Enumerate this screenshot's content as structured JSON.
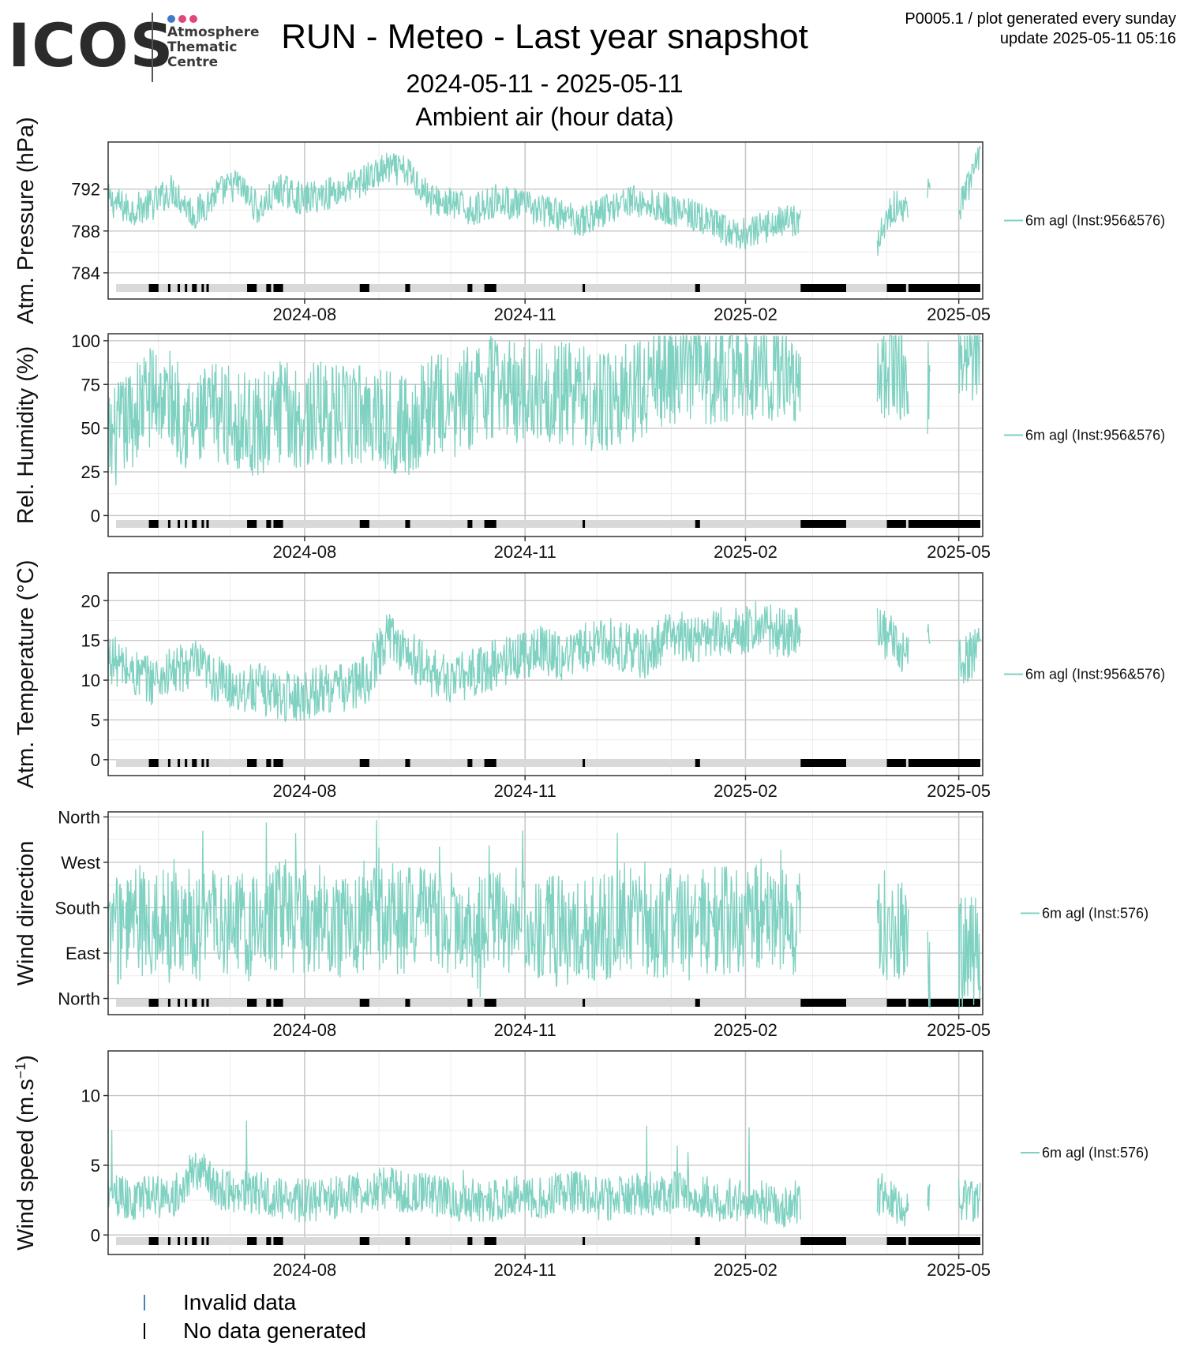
{
  "header": {
    "logo_text": "ICOS",
    "logo_sub": [
      "Atmosphere",
      "Thematic",
      "Centre"
    ],
    "logo_dot_colors": [
      "#3e7ac6",
      "#e0457b",
      "#e0457b"
    ],
    "title": "RUN - Meteo - Last year snapshot",
    "date_range": "2024-05-11 - 2025-05-11",
    "subtitle": "Ambient air (hour data)",
    "meta_line1": "P0005.1 / plot generated every sunday",
    "meta_line2": "update  2025-05-11 05:16"
  },
  "colors": {
    "series": "#7fd1c1",
    "invalid": "#4a7fc0",
    "no_data": "#000000",
    "strip": "#d9d9d9",
    "grid_major": "#c8c8c8",
    "grid_minor": "#ececec"
  },
  "legend_bottom": [
    {
      "label": "Invalid data",
      "color": "#4a7fc0"
    },
    {
      "label": "No data generated",
      "color": "#000000"
    }
  ],
  "chart_data": [
    {
      "type": "line",
      "ylabel": "Atm. Pressure (hPa)",
      "series_name": "6m agl (Inst:956&576)",
      "xrange": [
        "2024-05-11",
        "2025-05-11"
      ],
      "xticks": [
        "2024-08",
        "2024-11",
        "2025-02",
        "2025-05"
      ],
      "ylim": [
        781.5,
        796.5
      ],
      "yticks": [
        784,
        788,
        792
      ],
      "ytick_labels": [
        "784",
        "788",
        "792"
      ],
      "grid": true,
      "series": [
        {
          "points": [
            [
              "2024-05-11",
              791.0
            ],
            [
              "2024-05-20",
              790.0
            ],
            [
              "2024-05-29",
              790.5
            ],
            [
              "2024-06-07",
              792.0
            ],
            [
              "2024-06-16",
              789.5
            ],
            [
              "2024-06-25",
              791.5
            ],
            [
              "2024-07-04",
              792.5
            ],
            [
              "2024-07-13",
              790.0
            ],
            [
              "2024-07-22",
              792.0
            ],
            [
              "2024-07-31",
              791.0
            ],
            [
              "2024-08-09",
              791.5
            ],
            [
              "2024-08-18",
              792.0
            ],
            [
              "2024-08-27",
              793.0
            ],
            [
              "2024-09-05",
              794.0
            ],
            [
              "2024-09-14",
              793.5
            ],
            [
              "2024-09-23",
              791.0
            ],
            [
              "2024-10-02",
              790.5
            ],
            [
              "2024-10-11",
              790.0
            ],
            [
              "2024-10-20",
              791.0
            ],
            [
              "2024-10-29",
              790.5
            ],
            [
              "2024-11-07",
              790.0
            ],
            [
              "2024-11-16",
              789.5
            ],
            [
              "2024-11-25",
              789.0
            ],
            [
              "2024-12-04",
              790.0
            ],
            [
              "2024-12-13",
              791.0
            ],
            [
              "2024-12-22",
              790.5
            ],
            [
              "2025-01-01",
              790.0
            ],
            [
              "2025-01-10",
              789.5
            ],
            [
              "2025-01-19",
              788.5
            ],
            [
              "2025-01-28",
              787.5
            ],
            [
              "2025-02-06",
              788.0
            ],
            [
              "2025-02-15",
              789.0
            ],
            [
              "2025-02-24",
              789.0
            ],
            [
              "2025-03-28",
              787.0
            ],
            [
              "2025-04-04",
              790.5
            ],
            [
              "2025-04-10",
              790.0
            ],
            [
              "2025-04-18",
              792.0
            ],
            [
              "2025-05-01",
              790.0
            ],
            [
              "2025-05-10",
              795.0
            ]
          ]
        }
      ]
    },
    {
      "type": "line",
      "ylabel": "Rel. Humidity (%)",
      "series_name": "6m agl (Inst:956&576)",
      "xrange": [
        "2024-05-11",
        "2025-05-11"
      ],
      "xticks": [
        "2024-08",
        "2024-11",
        "2025-02",
        "2025-05"
      ],
      "ylim": [
        -12,
        104
      ],
      "yticks": [
        0,
        25,
        50,
        75,
        100
      ],
      "ytick_labels": [
        "0",
        "25",
        "50",
        "75",
        "100"
      ],
      "grid": true,
      "series": [
        {
          "points": [
            [
              "2024-05-11",
              40
            ],
            [
              "2024-05-20",
              55
            ],
            [
              "2024-05-29",
              70
            ],
            [
              "2024-06-07",
              65
            ],
            [
              "2024-06-16",
              50
            ],
            [
              "2024-06-25",
              60
            ],
            [
              "2024-07-04",
              55
            ],
            [
              "2024-07-13",
              50
            ],
            [
              "2024-07-22",
              60
            ],
            [
              "2024-07-31",
              55
            ],
            [
              "2024-08-09",
              60
            ],
            [
              "2024-08-18",
              55
            ],
            [
              "2024-08-27",
              60
            ],
            [
              "2024-09-05",
              55
            ],
            [
              "2024-09-14",
              50
            ],
            [
              "2024-09-23",
              65
            ],
            [
              "2024-10-02",
              60
            ],
            [
              "2024-10-11",
              70
            ],
            [
              "2024-10-20",
              75
            ],
            [
              "2024-10-29",
              70
            ],
            [
              "2024-11-07",
              72
            ],
            [
              "2024-11-16",
              70
            ],
            [
              "2024-11-25",
              68
            ],
            [
              "2024-12-04",
              65
            ],
            [
              "2024-12-13",
              70
            ],
            [
              "2024-12-22",
              75
            ],
            [
              "2025-01-01",
              82
            ],
            [
              "2025-01-10",
              85
            ],
            [
              "2025-01-19",
              80
            ],
            [
              "2025-01-28",
              85
            ],
            [
              "2025-02-06",
              84
            ],
            [
              "2025-02-15",
              83
            ],
            [
              "2025-02-24",
              82
            ],
            [
              "2025-03-28",
              80
            ],
            [
              "2025-04-04",
              85
            ],
            [
              "2025-04-10",
              82
            ],
            [
              "2025-04-18",
              75
            ],
            [
              "2025-05-01",
              88
            ],
            [
              "2025-05-10",
              90
            ]
          ]
        }
      ]
    },
    {
      "type": "line",
      "ylabel": "Atm. Temperature (°C)",
      "series_name": "6m agl (Inst:956&576)",
      "xrange": [
        "2024-05-11",
        "2025-05-11"
      ],
      "xticks": [
        "2024-08",
        "2024-11",
        "2025-02",
        "2025-05"
      ],
      "ylim": [
        -2,
        23.5
      ],
      "yticks": [
        0,
        5,
        10,
        15,
        20
      ],
      "ytick_labels": [
        "0",
        "5",
        "10",
        "15",
        "20"
      ],
      "grid": true,
      "series": [
        {
          "points": [
            [
              "2024-05-11",
              13
            ],
            [
              "2024-05-20",
              11
            ],
            [
              "2024-05-29",
              10
            ],
            [
              "2024-06-07",
              11
            ],
            [
              "2024-06-16",
              12
            ],
            [
              "2024-06-25",
              10
            ],
            [
              "2024-07-04",
              9
            ],
            [
              "2024-07-13",
              9
            ],
            [
              "2024-07-22",
              8
            ],
            [
              "2024-07-31",
              8
            ],
            [
              "2024-08-09",
              9
            ],
            [
              "2024-08-18",
              9
            ],
            [
              "2024-08-27",
              10
            ],
            [
              "2024-09-05",
              16
            ],
            [
              "2024-09-14",
              13
            ],
            [
              "2024-09-23",
              11
            ],
            [
              "2024-10-02",
              10
            ],
            [
              "2024-10-11",
              11
            ],
            [
              "2024-10-20",
              12
            ],
            [
              "2024-10-29",
              13
            ],
            [
              "2024-11-07",
              14
            ],
            [
              "2024-11-16",
              13
            ],
            [
              "2024-11-25",
              14
            ],
            [
              "2024-12-04",
              15
            ],
            [
              "2024-12-13",
              14
            ],
            [
              "2024-12-22",
              13
            ],
            [
              "2025-01-01",
              16
            ],
            [
              "2025-01-10",
              15
            ],
            [
              "2025-01-19",
              16
            ],
            [
              "2025-01-28",
              16
            ],
            [
              "2025-02-06",
              17
            ],
            [
              "2025-02-15",
              16
            ],
            [
              "2025-02-24",
              16
            ],
            [
              "2025-03-28",
              16
            ],
            [
              "2025-04-04",
              15
            ],
            [
              "2025-04-10",
              13
            ],
            [
              "2025-04-18",
              14
            ],
            [
              "2025-05-01",
              12
            ],
            [
              "2025-05-10",
              14
            ]
          ]
        }
      ]
    },
    {
      "type": "line",
      "ylabel": "Wind direction",
      "series_name": "6m agl (Inst:576)",
      "xrange": [
        "2024-05-11",
        "2025-05-11"
      ],
      "xticks": [
        "2024-08",
        "2024-11",
        "2025-02",
        "2025-05"
      ],
      "ylim": [
        -32,
        370
      ],
      "yticks": [
        0,
        90,
        180,
        270,
        360
      ],
      "ytick_labels": [
        "North",
        "East",
        "South",
        "West",
        "North"
      ],
      "grid": true,
      "series": [
        {
          "points": [
            [
              "2024-05-11",
              120
            ],
            [
              "2024-05-20",
              160
            ],
            [
              "2024-05-29",
              150
            ],
            [
              "2024-06-07",
              170
            ],
            [
              "2024-06-16",
              140
            ],
            [
              "2024-06-25",
              160
            ],
            [
              "2024-07-04",
              150
            ],
            [
              "2024-07-13",
              130
            ],
            [
              "2024-07-22",
              170
            ],
            [
              "2024-07-31",
              150
            ],
            [
              "2024-08-09",
              160
            ],
            [
              "2024-08-18",
              140
            ],
            [
              "2024-08-27",
              170
            ],
            [
              "2024-09-05",
              150
            ],
            [
              "2024-09-14",
              160
            ],
            [
              "2024-09-23",
              140
            ],
            [
              "2024-10-02",
              150
            ],
            [
              "2024-10-11",
              130
            ],
            [
              "2024-10-20",
              160
            ],
            [
              "2024-10-29",
              150
            ],
            [
              "2024-11-07",
              140
            ],
            [
              "2024-11-16",
              130
            ],
            [
              "2024-11-25",
              150
            ],
            [
              "2024-12-04",
              140
            ],
            [
              "2024-12-13",
              160
            ],
            [
              "2024-12-22",
              130
            ],
            [
              "2025-01-01",
              150
            ],
            [
              "2025-01-10",
              140
            ],
            [
              "2025-01-19",
              160
            ],
            [
              "2025-01-28",
              150
            ],
            [
              "2025-02-06",
              170
            ],
            [
              "2025-02-15",
              160
            ],
            [
              "2025-02-24",
              150
            ],
            [
              "2025-03-28",
              140
            ],
            [
              "2025-04-04",
              150
            ],
            [
              "2025-04-10",
              120
            ],
            [
              "2025-04-18",
              80
            ],
            [
              "2025-05-01",
              90
            ],
            [
              "2025-05-10",
              100
            ]
          ]
        }
      ]
    },
    {
      "type": "line",
      "ylabel": "Wind speed (m.s",
      "ylabel_sup": "−1",
      "ylabel_close": ")",
      "series_name": "6m agl (Inst:576)",
      "xrange": [
        "2024-05-11",
        "2025-05-11"
      ],
      "xticks": [
        "2024-08",
        "2024-11",
        "2025-02",
        "2025-05"
      ],
      "ylim": [
        -1.4,
        13.2
      ],
      "yticks": [
        0,
        5,
        10
      ],
      "ytick_labels": [
        "0",
        "5",
        "10"
      ],
      "grid": true,
      "series": [
        {
          "points": [
            [
              "2024-05-11",
              3.0
            ],
            [
              "2024-05-20",
              2.5
            ],
            [
              "2024-05-29",
              3.0
            ],
            [
              "2024-06-07",
              2.5
            ],
            [
              "2024-06-16",
              5.0
            ],
            [
              "2024-06-25",
              3.5
            ],
            [
              "2024-07-04",
              3.0
            ],
            [
              "2024-07-13",
              3.0
            ],
            [
              "2024-07-22",
              2.5
            ],
            [
              "2024-07-31",
              2.5
            ],
            [
              "2024-08-09",
              2.5
            ],
            [
              "2024-08-18",
              3.0
            ],
            [
              "2024-08-27",
              3.0
            ],
            [
              "2024-09-05",
              3.5
            ],
            [
              "2024-09-14",
              3.0
            ],
            [
              "2024-09-23",
              3.0
            ],
            [
              "2024-10-02",
              2.5
            ],
            [
              "2024-10-11",
              2.5
            ],
            [
              "2024-10-20",
              2.5
            ],
            [
              "2024-10-29",
              3.0
            ],
            [
              "2024-11-07",
              2.5
            ],
            [
              "2024-11-16",
              3.0
            ],
            [
              "2024-11-25",
              3.0
            ],
            [
              "2024-12-04",
              2.5
            ],
            [
              "2024-12-13",
              3.0
            ],
            [
              "2024-12-22",
              3.0
            ],
            [
              "2025-01-01",
              3.0
            ],
            [
              "2025-01-10",
              3.0
            ],
            [
              "2025-01-19",
              2.5
            ],
            [
              "2025-01-28",
              2.5
            ],
            [
              "2025-02-06",
              2.5
            ],
            [
              "2025-02-15",
              2.0
            ],
            [
              "2025-02-24",
              2.5
            ],
            [
              "2025-03-28",
              3.0
            ],
            [
              "2025-04-04",
              2.5
            ],
            [
              "2025-04-10",
              2.0
            ],
            [
              "2025-04-18",
              3.0
            ],
            [
              "2025-05-01",
              2.5
            ],
            [
              "2025-05-10",
              2.5
            ]
          ]
        }
      ]
    }
  ],
  "no_data_periods": [
    [
      "2024-05-28",
      "2024-06-01"
    ],
    [
      "2024-06-05",
      "2024-06-06"
    ],
    [
      "2024-06-09",
      "2024-06-10"
    ],
    [
      "2024-06-12",
      "2024-06-13"
    ],
    [
      "2024-06-15",
      "2024-06-17"
    ],
    [
      "2024-06-19",
      "2024-06-20"
    ],
    [
      "2024-06-21",
      "2024-06-22"
    ],
    [
      "2024-07-08",
      "2024-07-12"
    ],
    [
      "2024-07-16",
      "2024-07-18"
    ],
    [
      "2024-07-19",
      "2024-07-23"
    ],
    [
      "2024-08-24",
      "2024-08-28"
    ],
    [
      "2024-09-12",
      "2024-09-14"
    ],
    [
      "2024-10-08",
      "2024-10-10"
    ],
    [
      "2024-10-15",
      "2024-10-20"
    ],
    [
      "2024-11-25",
      "2024-11-26"
    ],
    [
      "2025-01-11",
      "2025-01-13"
    ],
    [
      "2025-02-24",
      "2025-03-15"
    ],
    [
      "2025-04-01",
      "2025-04-09"
    ],
    [
      "2025-04-10",
      "2025-05-10"
    ]
  ]
}
